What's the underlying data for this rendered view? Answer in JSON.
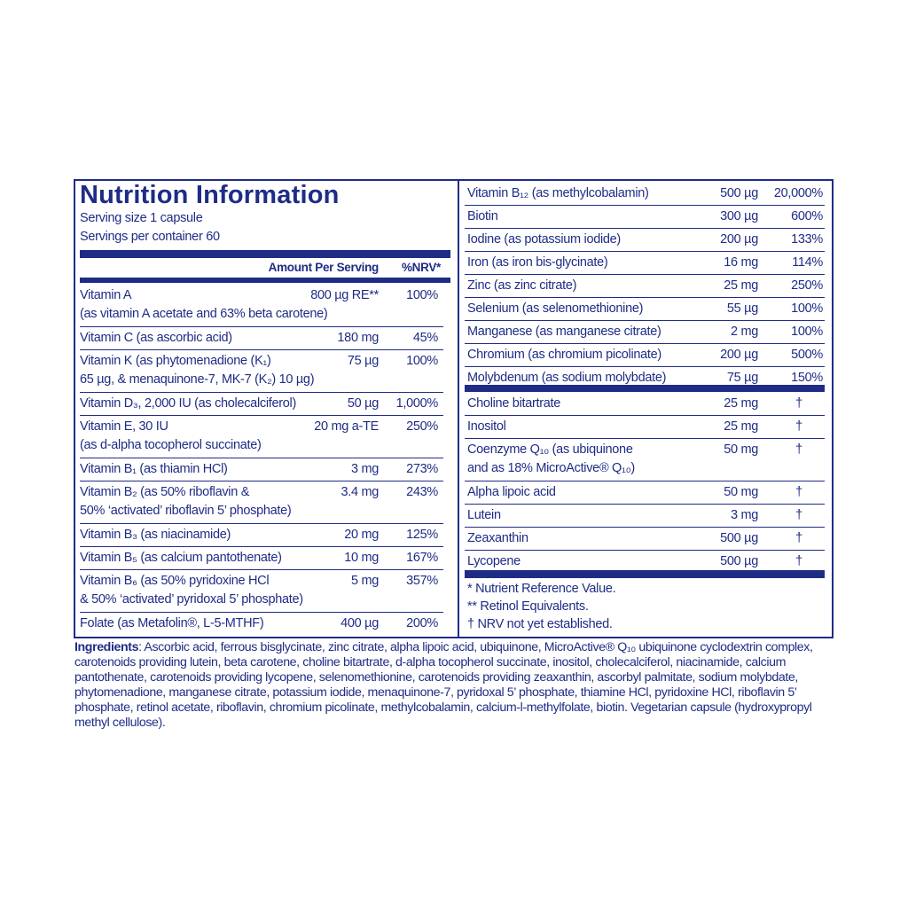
{
  "header": {
    "title": "Nutrition Information",
    "serving_size": "Serving size  1 capsule",
    "servings_per_container": "Servings per container  60"
  },
  "left_table": {
    "columns": [
      "Amount Per Serving",
      "%NRV*"
    ],
    "rows": [
      {
        "name": [
          "Vitamin A",
          "(as vitamin A acetate and 63% beta carotene)"
        ],
        "amount": "800 µg RE**",
        "nrv": "100%"
      },
      {
        "name": [
          "Vitamin C (as ascorbic acid)"
        ],
        "amount": "180 mg",
        "nrv": "45%"
      },
      {
        "name": [
          "Vitamin K (as phytomenadione (K₁)",
          "65 µg, & menaquinone-7, MK-7 (K₂) 10 µg)"
        ],
        "amount": "75 µg",
        "nrv": "100%"
      },
      {
        "name": [
          "Vitamin D₃, 2,000 IU (as cholecalciferol)"
        ],
        "amount": "50 µg",
        "nrv": "1,000%"
      },
      {
        "name": [
          "Vitamin E, 30 IU",
          "(as d-alpha tocopherol succinate)"
        ],
        "amount": "20 mg a-TE",
        "nrv": "250%"
      },
      {
        "name": [
          "Vitamin B₁ (as thiamin HCl)"
        ],
        "amount": "3 mg",
        "nrv": "273%"
      },
      {
        "name": [
          "Vitamin B₂ (as 50% riboflavin &",
          "50% ‘activated’ riboflavin 5’ phosphate)"
        ],
        "amount": "3.4 mg",
        "nrv": "243%"
      },
      {
        "name": [
          "Vitamin B₃ (as niacinamide)"
        ],
        "amount": "20 mg",
        "nrv": "125%"
      },
      {
        "name": [
          "Vitamin B₅ (as calcium pantothenate)"
        ],
        "amount": "10 mg",
        "nrv": "167%"
      },
      {
        "name": [
          "Vitamin B₆ (as 50% pyridoxine HCl",
          "& 50% ‘activated’ pyridoxal 5’ phosphate)"
        ],
        "amount": "5 mg",
        "nrv": "357%"
      },
      {
        "name": [
          "Folate (as Metafolin®, L-5-MTHF)"
        ],
        "amount": "400 µg",
        "nrv": "200%"
      }
    ]
  },
  "right_table": {
    "groups": [
      [
        {
          "name": [
            "Vitamin B₁₂ (as methylcobalamin)"
          ],
          "amount": "500 µg",
          "nrv": "20,000%"
        },
        {
          "name": [
            "Biotin"
          ],
          "amount": "300 µg",
          "nrv": "600%"
        },
        {
          "name": [
            "Iodine (as potassium iodide)"
          ],
          "amount": "200 µg",
          "nrv": "133%"
        },
        {
          "name": [
            "Iron (as iron bis-glycinate)"
          ],
          "amount": "16 mg",
          "nrv": "114%"
        },
        {
          "name": [
            "Zinc (as zinc citrate)"
          ],
          "amount": "25 mg",
          "nrv": "250%"
        },
        {
          "name": [
            "Selenium (as selenomethionine)"
          ],
          "amount": "55 µg",
          "nrv": "100%"
        },
        {
          "name": [
            "Manganese (as manganese citrate)"
          ],
          "amount": "2 mg",
          "nrv": "100%"
        },
        {
          "name": [
            "Chromium (as chromium picolinate)"
          ],
          "amount": "200 µg",
          "nrv": "500%"
        },
        {
          "name": [
            "Molybdenum (as sodium molybdate)"
          ],
          "amount": "75 µg",
          "nrv": "150%"
        }
      ],
      [
        {
          "name": [
            "Choline bitartrate"
          ],
          "amount": "25 mg",
          "nrv": "†"
        },
        {
          "name": [
            "Inositol"
          ],
          "amount": "25 mg",
          "nrv": "†"
        },
        {
          "name": [
            "Coenzyme Q₁₀ (as ubiquinone",
            "and as 18% MicroActive® Q₁₀)"
          ],
          "amount": "50 mg",
          "nrv": "†"
        },
        {
          "name": [
            "Alpha lipoic acid"
          ],
          "amount": "50 mg",
          "nrv": "†"
        },
        {
          "name": [
            "Lutein"
          ],
          "amount": "3 mg",
          "nrv": "†"
        },
        {
          "name": [
            "Zeaxanthin"
          ],
          "amount": "500 µg",
          "nrv": "†"
        },
        {
          "name": [
            "Lycopene"
          ],
          "amount": "500 µg",
          "nrv": "†"
        }
      ]
    ]
  },
  "footnotes": [
    "* Nutrient Reference Value.",
    "** Retinol Equivalents.",
    "† NRV not yet established."
  ],
  "ingredients": {
    "label": "Ingredients",
    "text": ": Ascorbic acid, ferrous bisglycinate, zinc citrate, alpha lipoic acid, ubiquinone, MicroActive® Q₁₀ ubiquinone cyclodextrin complex, carotenoids providing lutein, beta carotene, choline bitartrate, d-alpha tocopherol succinate, inositol, cholecalciferol, niacinamide, calcium pantothenate, carotenoids providing lycopene, selenomethionine, carotenoids providing zeaxanthin, ascorbyl palmitate, sodium molybdate, phytomenadione, manganese citrate, potassium iodide, menaquinone-7, pyridoxal 5’ phosphate, thiamine HCl, pyridoxine HCl, riboflavin 5’ phosphate, retinol acetate, riboflavin, chromium picolinate, methylcobalamin, calcium-l-methylfolate, biotin. Vegetarian capsule (hydroxypropyl methyl cellulose)."
  }
}
